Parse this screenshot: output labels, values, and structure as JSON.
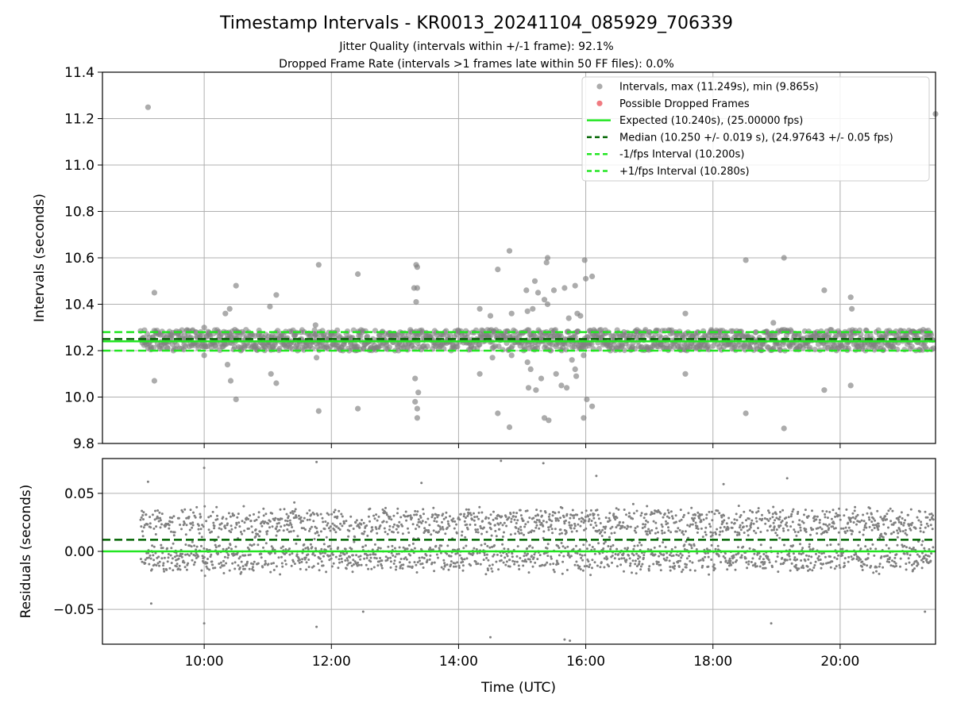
{
  "figure": {
    "title": "Timestamp Intervals - KR0013_20241104_085929_706339",
    "subtitle_1": "Jitter Quality (intervals within +/-1 frame): 92.1%",
    "subtitle_2": "Dropped Frame Rate (intervals >1 frames late within 50 FF files): 0.0%"
  },
  "colors": {
    "points": "#808080",
    "dropped": "#e8323c",
    "expected": "#22e622",
    "median": "#006400",
    "interval_lines": "#22e622"
  },
  "chart_data": [
    {
      "type": "scatter",
      "ylabel": "Intervals (seconds)",
      "xlim": [
        "08:24",
        "21:30"
      ],
      "ylim": [
        9.8,
        11.4
      ],
      "yticks": [
        "9.8",
        "10.0",
        "10.2",
        "10.4",
        "10.6",
        "10.8",
        "11.0",
        "11.2",
        "11.4"
      ],
      "grid": true,
      "legend_position": "top-right",
      "legend": [
        "Intervals, max (11.249s), min (9.865s)",
        "Possible Dropped Frames",
        "Expected (10.240s), (25.00000 fps)",
        "Median (10.250 +/- 0.019 s), (24.97643 +/- 0.05 fps)",
        "-1/fps Interval (10.200s)",
        "+1/fps Interval (10.280s)"
      ],
      "reference_lines": {
        "expected": 10.24,
        "median": 10.25,
        "minus_1fps": 10.2,
        "plus_1fps": 10.28
      },
      "series": [
        {
          "name": "Intervals, max (11.249s), min (9.865s)",
          "time_range": [
            "09:00",
            "21:30"
          ],
          "typical_range": [
            10.2,
            10.29
          ],
          "outliers": [
            [
              "09:07",
              11.249
            ],
            [
              "09:13",
              10.45
            ],
            [
              "09:13",
              10.07
            ],
            [
              "10:00",
              10.3
            ],
            [
              "10:00",
              10.18
            ],
            [
              "10:20",
              10.36
            ],
            [
              "10:22",
              10.14
            ],
            [
              "10:24",
              10.38
            ],
            [
              "10:25",
              10.07
            ],
            [
              "10:29",
              10.29
            ],
            [
              "10:30",
              10.48
            ],
            [
              "10:30",
              9.99
            ],
            [
              "11:02",
              10.39
            ],
            [
              "11:03",
              10.1
            ],
            [
              "11:08",
              10.44
            ],
            [
              "11:08",
              10.06
            ],
            [
              "11:45",
              10.31
            ],
            [
              "11:46",
              10.17
            ],
            [
              "11:48",
              10.57
            ],
            [
              "11:48",
              9.94
            ],
            [
              "12:25",
              10.53
            ],
            [
              "12:25",
              9.95
            ],
            [
              "13:18",
              10.47
            ],
            [
              "13:19",
              10.08
            ],
            [
              "13:19",
              9.98
            ],
            [
              "13:20",
              10.57
            ],
            [
              "13:20",
              10.41
            ],
            [
              "13:21",
              10.56
            ],
            [
              "13:21",
              10.47
            ],
            [
              "13:21",
              9.95
            ],
            [
              "13:21",
              9.91
            ],
            [
              "13:22",
              10.02
            ],
            [
              "14:20",
              10.38
            ],
            [
              "14:20",
              10.1
            ],
            [
              "14:30",
              10.35
            ],
            [
              "14:32",
              10.17
            ],
            [
              "14:37",
              10.55
            ],
            [
              "14:37",
              9.93
            ],
            [
              "14:48",
              10.63
            ],
            [
              "14:48",
              9.87
            ],
            [
              "14:50",
              10.36
            ],
            [
              "14:50",
              10.18
            ],
            [
              "15:04",
              10.46
            ],
            [
              "15:05",
              10.37
            ],
            [
              "15:05",
              10.15
            ],
            [
              "15:06",
              10.04
            ],
            [
              "15:08",
              10.12
            ],
            [
              "15:10",
              10.38
            ],
            [
              "15:12",
              10.5
            ],
            [
              "15:13",
              10.03
            ],
            [
              "15:15",
              10.45
            ],
            [
              "15:18",
              10.08
            ],
            [
              "15:21",
              10.42
            ],
            [
              "15:21",
              9.91
            ],
            [
              "15:23",
              10.58
            ],
            [
              "15:24",
              10.6
            ],
            [
              "15:24",
              10.4
            ],
            [
              "15:25",
              9.9
            ],
            [
              "15:27",
              10.2
            ],
            [
              "15:30",
              10.46
            ],
            [
              "15:32",
              10.1
            ],
            [
              "15:37",
              10.05
            ],
            [
              "15:40",
              10.47
            ],
            [
              "15:42",
              10.04
            ],
            [
              "15:44",
              10.34
            ],
            [
              "15:47",
              10.16
            ],
            [
              "15:50",
              10.48
            ],
            [
              "15:50",
              10.12
            ],
            [
              "15:51",
              10.09
            ],
            [
              "15:52",
              10.36
            ],
            [
              "15:55",
              10.35
            ],
            [
              "15:58",
              10.18
            ],
            [
              "15:58",
              9.91
            ],
            [
              "15:59",
              10.59
            ],
            [
              "16:00",
              10.51
            ],
            [
              "16:01",
              9.99
            ],
            [
              "16:06",
              10.52
            ],
            [
              "16:06",
              9.96
            ],
            [
              "17:34",
              10.36
            ],
            [
              "17:34",
              10.1
            ],
            [
              "18:31",
              10.59
            ],
            [
              "18:31",
              9.93
            ],
            [
              "18:57",
              10.32
            ],
            [
              "19:07",
              10.6
            ],
            [
              "19:07",
              9.865
            ],
            [
              "19:45",
              10.46
            ],
            [
              "19:45",
              10.03
            ],
            [
              "20:10",
              10.43
            ],
            [
              "20:10",
              10.05
            ],
            [
              "20:11",
              10.38
            ],
            [
              "21:30",
              11.22
            ]
          ]
        },
        {
          "name": "Possible Dropped Frames",
          "points": []
        }
      ]
    },
    {
      "type": "scatter",
      "xlabel": "Time (UTC)",
      "ylabel": "Residuals (seconds)",
      "xlim": [
        "08:24",
        "21:30"
      ],
      "ylim": [
        -0.08,
        0.08
      ],
      "yticks": [
        "−0.05",
        "0.00",
        "0.05"
      ],
      "xticks": [
        "10:00",
        "12:00",
        "14:00",
        "16:00",
        "18:00",
        "20:00"
      ],
      "grid": true,
      "reference_lines": {
        "expected": 0.0,
        "median": 0.01
      },
      "series": [
        {
          "name": "Residuals",
          "time_range": [
            "09:00",
            "21:30"
          ],
          "bands": [
            -0.01,
            0.02,
            0.03,
            0.0
          ],
          "spread": 0.025,
          "outliers": [
            [
              "09:07",
              0.06
            ],
            [
              "09:10",
              -0.045
            ],
            [
              "10:00",
              0.072
            ],
            [
              "10:00",
              -0.062
            ],
            [
              "11:46",
              0.077
            ],
            [
              "11:46",
              -0.065
            ],
            [
              "12:30",
              -0.052
            ],
            [
              "13:25",
              0.059
            ],
            [
              "14:30",
              -0.074
            ],
            [
              "14:40",
              0.078
            ],
            [
              "15:20",
              0.076
            ],
            [
              "15:40",
              -0.076
            ],
            [
              "15:45",
              -0.077
            ],
            [
              "16:10",
              0.065
            ],
            [
              "18:10",
              0.058
            ],
            [
              "18:55",
              -0.062
            ],
            [
              "19:10",
              0.063
            ],
            [
              "21:20",
              -0.052
            ]
          ]
        }
      ]
    }
  ]
}
